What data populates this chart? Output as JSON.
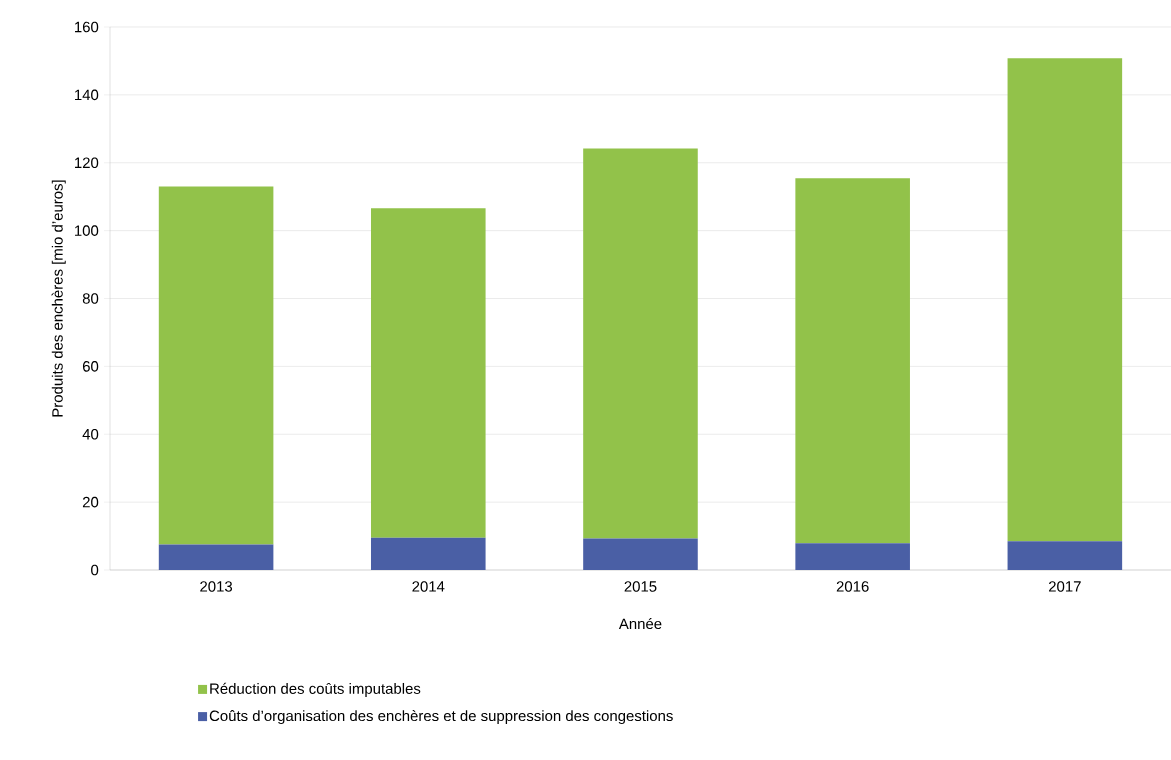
{
  "chart_data": {
    "type": "bar",
    "stacked": true,
    "xlabel": "Année",
    "ylabel": "Produits des enchères [mio d’euros]",
    "categories": [
      "2013",
      "2014",
      "2015",
      "2016",
      "2017"
    ],
    "series": [
      {
        "name": "Coûts d’organisation des enchères et de suppression des congestions",
        "color": "#4a5fa5",
        "values": [
          7.5,
          9.5,
          9.3,
          7.9,
          8.5
        ]
      },
      {
        "name": "Réduction des coûts imputables",
        "color": "#92c24a",
        "values": [
          105.5,
          97.1,
          114.9,
          107.5,
          142.3
        ]
      }
    ],
    "ylim": [
      0,
      160
    ],
    "yticks": [
      0,
      20,
      40,
      60,
      80,
      100,
      120,
      140,
      160
    ],
    "grid": "y",
    "legend": "bottom"
  }
}
